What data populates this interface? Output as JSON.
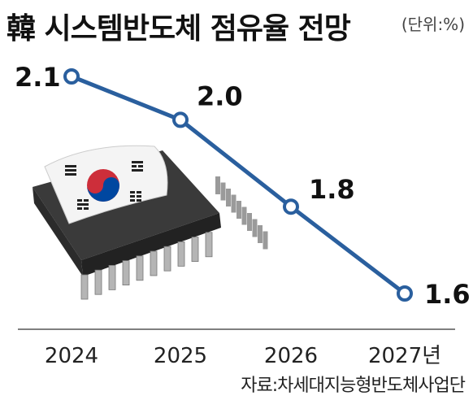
{
  "title": "韓 시스템반도체 점유율 전망",
  "unit": "(단위:%)",
  "source": "자료:차세대지능형반도체사업단",
  "colors": {
    "line": "#2a5f9e",
    "axis": "#555555",
    "chip": "#3a3a3a",
    "flag_red": "#cd2e3a",
    "flag_blue": "#0047a0"
  },
  "chart_data": {
    "type": "line",
    "categories": [
      "2024",
      "2025",
      "2026",
      "2027년"
    ],
    "values": [
      2.1,
      2.0,
      1.8,
      1.6
    ],
    "data_labels": [
      "2.1",
      "2.0",
      "1.8",
      "1.6"
    ],
    "title": "韓 시스템반도체 점유율 전망",
    "xlabel": "",
    "ylabel": "",
    "ylim": [
      1.6,
      2.1
    ],
    "grid": false,
    "legend": "none"
  }
}
